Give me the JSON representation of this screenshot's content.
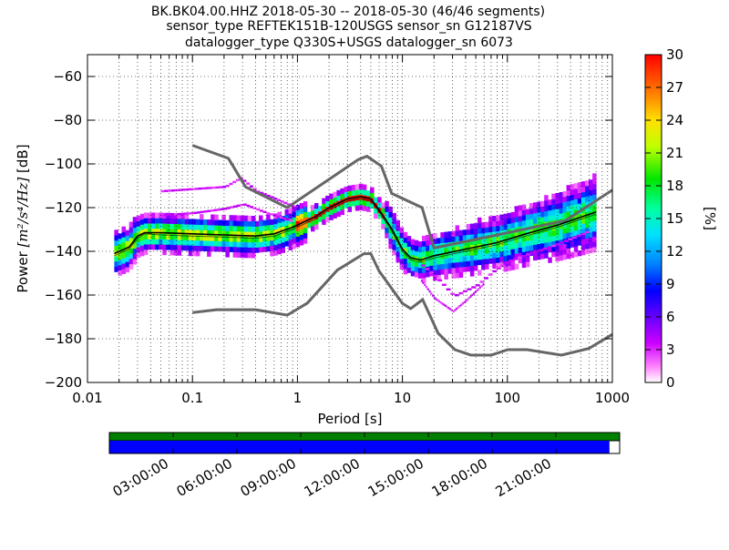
{
  "chart_data": {
    "type": "heatmap",
    "title_lines": [
      "BK.BK04.00.HHZ   2018-05-30 -- 2018-05-30  (46/46 segments)",
      "sensor_type REFTEK151B-120USGS sensor_sn G12187VS",
      "datalogger_type Q330S+USGS datalogger_sn 6073"
    ],
    "xlabel": "Period [s]",
    "ylabel_prefix": "Power ",
    "ylabel_units": "[m²/s⁴/Hz]",
    "ylabel_suffix": " [dB]",
    "x_scale": "log",
    "xlim": [
      0.01,
      1000
    ],
    "ylim": [
      -200,
      -50
    ],
    "x_ticks": [
      0.01,
      0.1,
      1,
      10,
      100,
      1000
    ],
    "x_tick_labels": [
      "0.01",
      "0.1",
      "1",
      "10",
      "100",
      "1000"
    ],
    "y_ticks": [
      -200,
      -180,
      -160,
      -140,
      -120,
      -100,
      -80,
      -60
    ],
    "y_tick_labels": [
      "−200",
      "−180",
      "−160",
      "−140",
      "−120",
      "−100",
      "−80",
      "−60"
    ],
    "colorbar": {
      "label": "[%]",
      "range": [
        0,
        30
      ],
      "ticks": [
        0,
        3,
        6,
        9,
        12,
        15,
        18,
        21,
        24,
        27,
        30
      ],
      "tick_labels": [
        "0",
        "3",
        "6",
        "9",
        "12",
        "15",
        "18",
        "21",
        "24",
        "27",
        "30"
      ]
    },
    "grid": "dotted",
    "noise_models": [
      {
        "name": "NHNM",
        "points": [
          [
            0.1,
            -91.5
          ],
          [
            0.22,
            -97.4
          ],
          [
            0.32,
            -110.5
          ],
          [
            0.8,
            -120
          ],
          [
            3.8,
            -98
          ],
          [
            4.6,
            -96.5
          ],
          [
            6.3,
            -101
          ],
          [
            7.9,
            -113.5
          ],
          [
            15.4,
            -120
          ],
          [
            20,
            -138.5
          ],
          [
            354.8,
            -126
          ],
          [
            1000,
            -112
          ]
        ]
      },
      {
        "name": "NLNM",
        "points": [
          [
            0.1,
            -168
          ],
          [
            0.17,
            -166.7
          ],
          [
            0.4,
            -166.7
          ],
          [
            0.8,
            -169.2
          ],
          [
            1.24,
            -163.7
          ],
          [
            2.4,
            -148.6
          ],
          [
            4.3,
            -141.1
          ],
          [
            5,
            -141.1
          ],
          [
            6,
            -149
          ],
          [
            10,
            -163.8
          ],
          [
            12,
            -166.2
          ],
          [
            15.6,
            -162.1
          ],
          [
            21.9,
            -177.5
          ],
          [
            31.6,
            -185
          ],
          [
            45,
            -187.5
          ],
          [
            70,
            -187.5
          ],
          [
            101,
            -185
          ],
          [
            154,
            -185
          ],
          [
            328,
            -187.5
          ],
          [
            600,
            -184.4
          ],
          [
            1000,
            -178
          ]
        ]
      }
    ],
    "mode_line": [
      [
        0.018,
        -141
      ],
      [
        0.025,
        -138
      ],
      [
        0.03,
        -133
      ],
      [
        0.035,
        -131.5
      ],
      [
        0.05,
        -131.5
      ],
      [
        0.1,
        -132
      ],
      [
        0.2,
        -132.5
      ],
      [
        0.4,
        -133
      ],
      [
        0.6,
        -132
      ],
      [
        0.9,
        -129
      ],
      [
        1.5,
        -124
      ],
      [
        2,
        -120
      ],
      [
        3,
        -116
      ],
      [
        4,
        -115
      ],
      [
        5,
        -116
      ],
      [
        6,
        -121
      ],
      [
        8,
        -130
      ],
      [
        10,
        -139
      ],
      [
        12,
        -143
      ],
      [
        15,
        -144
      ],
      [
        20,
        -142
      ],
      [
        40,
        -139
      ],
      [
        80,
        -136
      ],
      [
        150,
        -132
      ],
      [
        300,
        -128
      ],
      [
        700,
        -122
      ]
    ],
    "mean_line": [
      [
        0.018,
        -142
      ],
      [
        0.025,
        -139
      ],
      [
        0.03,
        -134
      ],
      [
        0.035,
        -132
      ],
      [
        0.05,
        -132.5
      ],
      [
        0.1,
        -133
      ],
      [
        0.2,
        -133.5
      ],
      [
        0.4,
        -134
      ],
      [
        0.6,
        -133
      ],
      [
        0.9,
        -130
      ],
      [
        1.5,
        -125
      ],
      [
        2,
        -121
      ],
      [
        3,
        -117
      ],
      [
        4,
        -116
      ],
      [
        5,
        -117
      ],
      [
        6,
        -122
      ],
      [
        8,
        -131
      ],
      [
        10,
        -140
      ],
      [
        12,
        -144
      ],
      [
        15,
        -145
      ],
      [
        20,
        -143
      ],
      [
        40,
        -140
      ],
      [
        80,
        -137
      ],
      [
        150,
        -133
      ],
      [
        300,
        -129
      ],
      [
        700,
        -123
      ]
    ],
    "outlier_lines": [
      [
        [
          0.05,
          -113
        ],
        [
          0.1,
          -112
        ],
        [
          0.2,
          -111
        ],
        [
          0.28,
          -107
        ],
        [
          0.4,
          -113
        ],
        [
          1,
          -121
        ]
      ],
      [
        [
          0.05,
          -124
        ],
        [
          0.1,
          -123
        ],
        [
          0.2,
          -121
        ],
        [
          0.3,
          -119
        ],
        [
          0.5,
          -123
        ],
        [
          0.9,
          -127
        ]
      ],
      [
        [
          15,
          -147
        ],
        [
          20,
          -152
        ],
        [
          30,
          -161
        ],
        [
          50,
          -156
        ],
        [
          70,
          -150
        ],
        [
          100,
          -145
        ],
        [
          150,
          -142
        ],
        [
          300,
          -137
        ],
        [
          600,
          -131
        ]
      ],
      [
        [
          15,
          -154
        ],
        [
          20,
          -162
        ],
        [
          30,
          -168
        ],
        [
          40,
          -163
        ],
        [
          60,
          -155
        ]
      ]
    ],
    "timeline": {
      "time_labels": [
        "03:00:00",
        "06:00:00",
        "09:00:00",
        "12:00:00",
        "15:00:00",
        "18:00:00",
        "21:00:00"
      ],
      "green_color": "#007f00",
      "blue_color": "#0000ff",
      "coverage_fraction": 0.98
    },
    "colors": {
      "noise_model": "#666666",
      "mode": "#000000"
    }
  }
}
